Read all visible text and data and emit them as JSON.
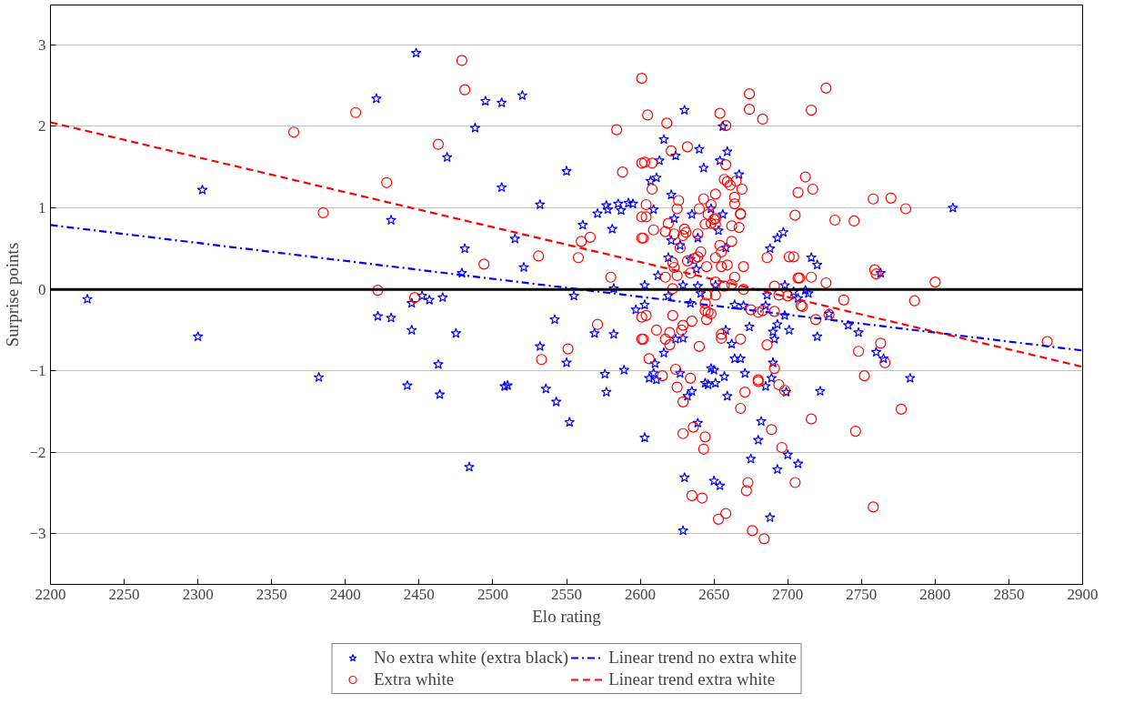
{
  "chart_data": {
    "type": "scatter",
    "xlabel": "Elo rating",
    "ylabel": "Surprise points",
    "xlim": [
      2200,
      2900
    ],
    "ylim": [
      -3.62,
      3.49
    ],
    "xticks": [
      2200,
      2250,
      2300,
      2350,
      2400,
      2450,
      2500,
      2550,
      2600,
      2650,
      2700,
      2750,
      2800,
      2850,
      2900
    ],
    "yticks": [
      {
        "value": -3,
        "label": "−3"
      },
      {
        "value": -2,
        "label": "−2"
      },
      {
        "value": -1,
        "label": "−1"
      },
      0,
      1,
      2,
      3
    ],
    "grid": "y",
    "legend": "bottom",
    "ref_lines": [
      {
        "axis": "y",
        "value": 0,
        "label": null,
        "color": "#000000"
      }
    ],
    "series": [
      {
        "name": "No extra white (extra black)",
        "marker": "star",
        "color": "#0000ff",
        "x": [
          2225,
          2300,
          2303,
          2382,
          2421,
          2422,
          2431,
          2431,
          2442,
          2445,
          2445,
          2448,
          2452,
          2457,
          2463,
          2464,
          2466,
          2469,
          2475,
          2479,
          2481,
          2484,
          2488,
          2495,
          2506,
          2506,
          2508,
          2510,
          2515,
          2520,
          2521,
          2532,
          2532,
          2536,
          2542,
          2543,
          2550,
          2550,
          2552,
          2555,
          2561,
          2569,
          2571,
          2576,
          2577,
          2577,
          2578,
          2581,
          2582,
          2582,
          2585,
          2587,
          2589,
          2592,
          2595,
          2597,
          2630,
          2656,
          2616,
          2640,
          2659,
          2613,
          2624,
          2654,
          2643,
          2667,
          2611,
          2607,
          2609,
          2621,
          2623,
          2635,
          2648,
          2656,
          2653,
          2639,
          2621,
          2627,
          2658,
          2619,
          2634,
          2638,
          2612,
          2629,
          2639,
          2651,
          2603,
          2619,
          2634,
          2641,
          2664,
          2670,
          2603,
          2685,
          2686,
          2698,
          2698,
          2674,
          2658,
          2693,
          2690,
          2701,
          2691,
          2662,
          2624,
          2629,
          2616,
          2610,
          2664,
          2668,
          2606,
          2611,
          2609,
          2627,
          2648,
          2650,
          2671,
          2657,
          2644,
          2646,
          2651,
          2690,
          2689,
          2685,
          2635,
          2632,
          2659,
          2699,
          2639,
          2682,
          2680,
          2603,
          2675,
          2700,
          2707,
          2693,
          2630,
          2650,
          2654,
          2688,
          2629,
          2688,
          2693,
          2697,
          2812,
          2716,
          2720,
          2763,
          2712,
          2704,
          2714,
          2707,
          2728,
          2741,
          2748,
          2720,
          2760,
          2765,
          2783,
          2722
        ],
        "values": [
          -0.12,
          -0.58,
          1.22,
          -1.08,
          2.34,
          -0.33,
          0.85,
          -0.35,
          -1.18,
          -0.17,
          -0.5,
          2.9,
          -0.08,
          -0.13,
          -0.92,
          -1.29,
          -0.1,
          1.62,
          -0.54,
          0.2,
          0.5,
          -2.18,
          1.98,
          2.31,
          1.25,
          2.29,
          -1.19,
          -1.18,
          0.62,
          2.38,
          0.27,
          1.04,
          -0.7,
          -1.22,
          -0.37,
          -1.38,
          1.45,
          -0.9,
          -1.63,
          -0.08,
          0.79,
          -0.54,
          0.93,
          -1.04,
          1.03,
          -1.26,
          0.98,
          0.74,
          0.01,
          -0.55,
          1.05,
          0.97,
          -0.99,
          1.06,
          1.05,
          -0.25,
          2.2,
          2.0,
          1.84,
          1.72,
          1.69,
          1.58,
          1.64,
          1.58,
          1.49,
          1.41,
          1.37,
          1.33,
          0.98,
          1.16,
          0.87,
          0.92,
          0.99,
          0.92,
          0.72,
          0.63,
          0.6,
          0.54,
          0.51,
          0.39,
          0.37,
          0.25,
          0.17,
          0.05,
          0.04,
          0.05,
          0.05,
          -0.08,
          -0.17,
          -0.05,
          -0.19,
          -0.2,
          -0.19,
          -0.2,
          -0.07,
          0.05,
          -0.32,
          -0.46,
          -0.5,
          -0.43,
          -0.52,
          -0.5,
          -0.61,
          -0.67,
          -0.61,
          -0.6,
          -0.78,
          -0.91,
          -0.85,
          -0.85,
          -1.09,
          -1.11,
          -1.03,
          -1.03,
          -0.97,
          -0.99,
          -1.03,
          -1.07,
          -1.15,
          -1.17,
          -1.15,
          -0.9,
          -1.09,
          -1.19,
          -1.25,
          -1.31,
          -1.31,
          -1.26,
          -1.64,
          -1.62,
          -1.85,
          -1.82,
          -2.08,
          -2.03,
          -2.14,
          -2.21,
          -2.31,
          -2.35,
          -2.41,
          -2.8,
          -2.96,
          0.5,
          0.63,
          0.7,
          1.0,
          0.39,
          0.3,
          0.2,
          -0.01,
          -0.03,
          -0.05,
          -0.11,
          -0.3,
          -0.44,
          -0.53,
          -0.58,
          -0.77,
          -0.85,
          -1.09,
          -1.25
        ]
      },
      {
        "name": "Extra white",
        "marker": "circle",
        "color": "#ff0000",
        "x": [
          2479,
          2481,
          2407,
          2365,
          2463,
          2428,
          2385,
          2422,
          2447,
          2601,
          2584,
          2588,
          2601,
          2601,
          2601,
          2566,
          2560,
          2558,
          2531,
          2494,
          2580,
          2601,
          2571,
          2601,
          2551,
          2533,
          2674,
          2674,
          2683,
          2605,
          2618,
          2654,
          2658,
          2632,
          2621,
          2603,
          2608,
          2658,
          2657,
          2659,
          2665,
          2669,
          2661,
          2608,
          2626,
          2625,
          2643,
          2651,
          2648,
          2664,
          2664,
          2668,
          2604,
          2604,
          2640,
          2646,
          2650,
          2651,
          2668,
          2609,
          2602,
          2619,
          2617,
          2623,
          2630,
          2631,
          2629,
          2639,
          2644,
          2648,
          2651,
          2662,
          2667,
          2662,
          2654,
          2655,
          2627,
          2686,
          2641,
          2639,
          2637,
          2632,
          2622,
          2623,
          2625,
          2645,
          2651,
          2655,
          2659,
          2670,
          2701,
          2617,
          2634,
          2664,
          2651,
          2662,
          2657,
          2622,
          2670,
          2691,
          2694,
          2700,
          2707,
          2645,
          2651,
          2644,
          2644,
          2646,
          2648,
          2645,
          2675,
          2680,
          2683,
          2691,
          2709,
          2604,
          2622,
          2635,
          2629,
          2628,
          2611,
          2602,
          2620,
          2617,
          2620,
          2655,
          2655,
          2668,
          2640,
          2686,
          2606,
          2624,
          2615,
          2634,
          2680,
          2680,
          2691,
          2694,
          2698,
          2625,
          2671,
          2629,
          2668,
          2636,
          2629,
          2644,
          2643,
          2689,
          2696,
          2705,
          2673,
          2672,
          2635,
          2642,
          2653,
          2658,
          2676,
          2684,
          2712,
          2707,
          2717,
          2758,
          2770,
          2780,
          2705,
          2732,
          2745,
          2704,
          2708,
          2716,
          2726,
          2759,
          2760,
          2800,
          2738,
          2786,
          2710,
          2719,
          2728,
          2876,
          2763,
          2748,
          2766,
          2752,
          2777,
          2716,
          2746,
          2758,
          2726,
          2716
        ],
        "values": [
          2.81,
          2.45,
          2.17,
          1.93,
          1.78,
          1.31,
          0.94,
          -0.01,
          -0.1,
          2.59,
          1.96,
          1.44,
          1.55,
          0.89,
          0.63,
          0.64,
          0.59,
          0.39,
          0.41,
          0.31,
          0.15,
          -0.34,
          -0.43,
          -0.61,
          -0.73,
          -0.86,
          2.4,
          2.21,
          2.09,
          2.14,
          2.04,
          2.16,
          2.01,
          1.75,
          1.7,
          1.56,
          1.55,
          1.53,
          1.35,
          1.32,
          1.33,
          1.23,
          1.28,
          1.23,
          1.09,
          0.99,
          1.11,
          1.17,
          1.04,
          1.13,
          1.05,
          0.92,
          1.04,
          0.89,
          0.99,
          0.92,
          0.86,
          0.87,
          0.93,
          0.73,
          0.63,
          0.81,
          0.71,
          0.68,
          0.74,
          0.7,
          0.66,
          0.68,
          0.8,
          0.81,
          0.8,
          0.78,
          0.76,
          0.59,
          0.54,
          0.46,
          0.51,
          0.39,
          0.46,
          0.4,
          0.38,
          0.35,
          0.33,
          0.27,
          0.17,
          0.28,
          0.39,
          0.28,
          0.3,
          0.28,
          0.4,
          0.15,
          0.2,
          0.15,
          0.09,
          0.06,
          0.04,
          0.01,
          0.0,
          0.04,
          -0.07,
          -0.08,
          0.14,
          -0.07,
          -0.07,
          -0.17,
          -0.26,
          -0.28,
          -0.3,
          -0.37,
          -0.25,
          -0.28,
          -0.26,
          -0.27,
          -0.2,
          -0.32,
          -0.32,
          -0.39,
          -0.44,
          -0.5,
          -0.5,
          -0.61,
          -0.53,
          -0.61,
          -0.68,
          -0.55,
          -0.6,
          -0.61,
          -0.7,
          -0.68,
          -0.85,
          -0.98,
          -1.06,
          -1.09,
          -1.11,
          -1.13,
          -0.97,
          -1.17,
          -1.24,
          -1.2,
          -1.26,
          -1.38,
          -1.46,
          -1.69,
          -1.77,
          -1.81,
          -1.96,
          -1.72,
          -1.94,
          -2.37,
          -2.37,
          -2.47,
          -2.53,
          -2.56,
          -2.82,
          -2.75,
          -2.96,
          -3.06,
          1.38,
          1.19,
          1.23,
          1.11,
          1.12,
          0.99,
          0.91,
          0.85,
          0.84,
          0.4,
          0.14,
          0.15,
          0.08,
          0.24,
          0.19,
          0.09,
          -0.13,
          -0.14,
          -0.21,
          -0.37,
          -0.31,
          -0.64,
          -0.66,
          -0.76,
          -0.9,
          -1.06,
          -1.47,
          -1.59,
          -1.74,
          -2.67,
          2.47,
          2.2
        ]
      },
      {
        "name": "Linear trend no extra white",
        "type": "line",
        "line_style": "dashdot",
        "color": "#0000ff",
        "x": [
          2200,
          2900
        ],
        "values": [
          0.79,
          -0.75
        ]
      },
      {
        "name": "Linear trend extra white",
        "type": "line",
        "line_style": "dashed",
        "color": "#ff0000",
        "x": [
          2200,
          2900
        ],
        "values": [
          2.05,
          -0.95
        ]
      }
    ]
  }
}
